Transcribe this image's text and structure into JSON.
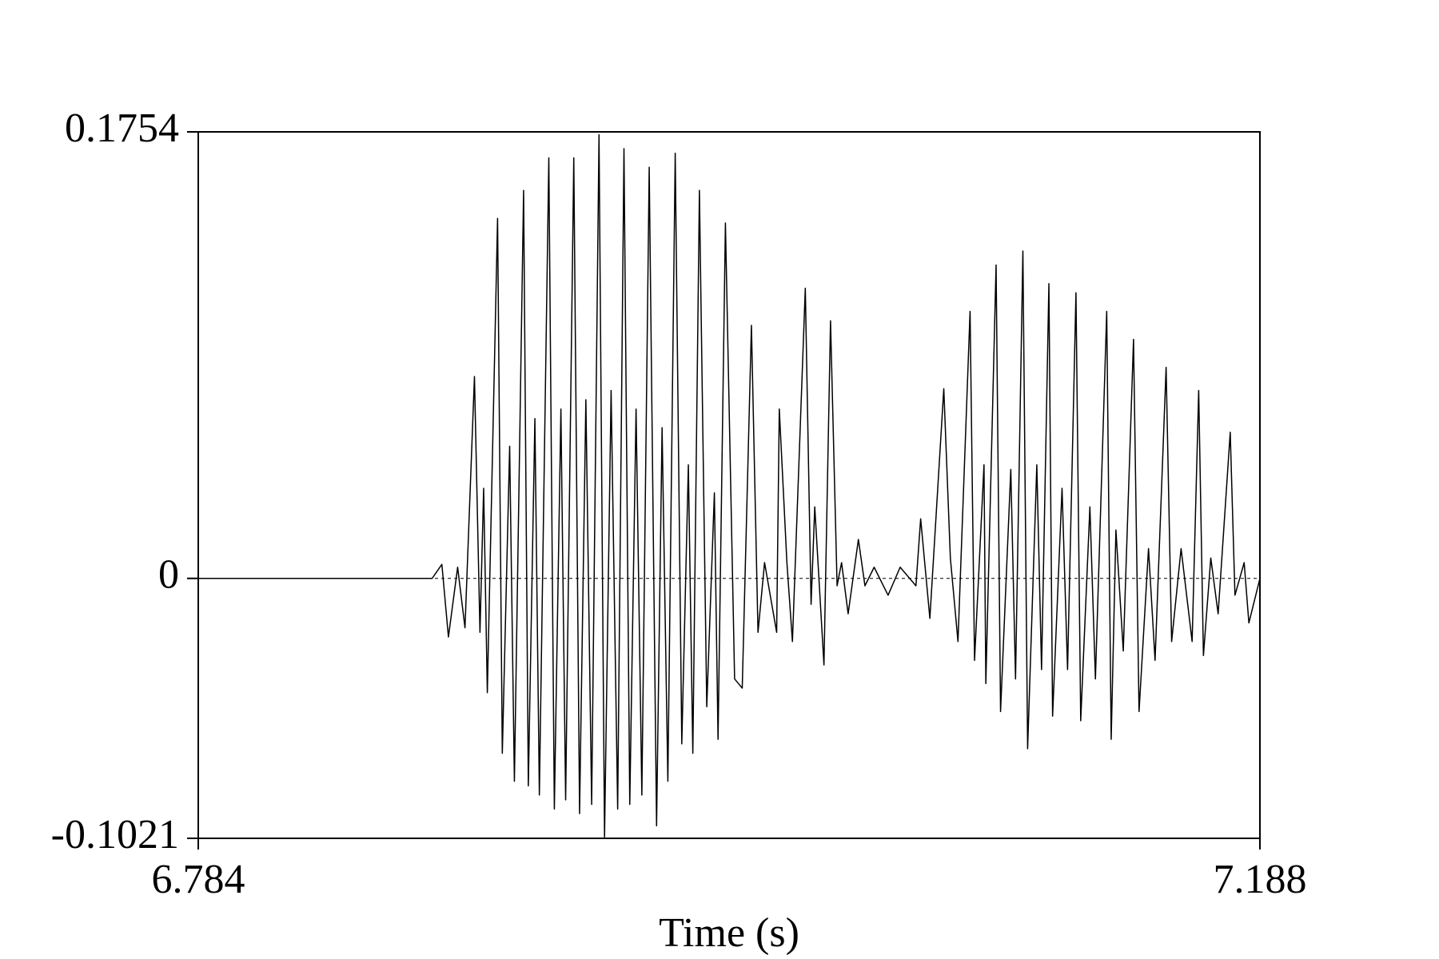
{
  "chart_data": {
    "type": "line",
    "x_label": "Time (s)",
    "color": "#000000",
    "zero_line": true,
    "xlim": [
      6.784,
      7.188
    ],
    "xticks": [
      6.784,
      7.188
    ],
    "ylim": [
      -0.1021,
      0.1754
    ],
    "yticks": [
      -0.1021,
      0,
      0.1754
    ],
    "x": [
      6.784,
      6.873,
      6.8767,
      6.8792,
      6.8827,
      6.8855,
      6.8891,
      6.8912,
      6.8926,
      6.894,
      6.8979,
      6.8997,
      6.9025,
      6.9043,
      6.9078,
      6.9096,
      6.9121,
      6.9138,
      6.9174,
      6.9195,
      6.922,
      6.9238,
      6.9269,
      6.9291,
      6.9315,
      6.9337,
      6.9365,
      6.9386,
      6.9411,
      6.9436,
      6.946,
      6.9482,
      6.9506,
      6.9528,
      6.9556,
      6.9584,
      6.9605,
      6.9627,
      6.9655,
      6.968,
      6.9705,
      6.9722,
      6.9747,
      6.9775,
      6.9804,
      6.9818,
      6.9846,
      6.9881,
      6.991,
      6.9945,
      6.997,
      6.9995,
      7.0041,
      7.0051,
      7.008,
      7.0101,
      7.015,
      7.0172,
      7.0186,
      7.0221,
      7.0246,
      7.0271,
      7.0288,
      7.0313,
      7.0352,
      7.0377,
      7.0412,
      7.0465,
      7.0511,
      7.0571,
      7.0589,
      7.0624,
      7.0677,
      7.0702,
      7.0731,
      7.0777,
      7.0794,
      7.083,
      7.0837,
      7.0876,
      7.0893,
      7.0932,
      7.095,
      7.0978,
      7.0996,
      7.1031,
      7.1049,
      7.1077,
      7.1091,
      7.1127,
      7.1148,
      7.118,
      7.1198,
      7.1233,
      7.1254,
      7.1297,
      7.1314,
      7.1332,
      7.136,
      7.1399,
      7.142,
      7.1456,
      7.1481,
      7.1523,
      7.1544,
      7.158,
      7.1622,
      7.1647,
      7.1665,
      7.1693,
      7.1721,
      7.1767,
      7.1785,
      7.182,
      7.1838,
      7.188
    ],
    "values": [
      0,
      0,
      0.0055,
      -0.023,
      0.0044,
      -0.0194,
      0.0793,
      -0.0212,
      0.0354,
      -0.0449,
      0.1414,
      -0.0687,
      0.0519,
      -0.0797,
      0.1524,
      -0.0815,
      0.0628,
      -0.0851,
      0.1652,
      -0.0906,
      0.0665,
      -0.087,
      0.1652,
      -0.0924,
      0.0702,
      -0.0888,
      0.1743,
      -0.1016,
      0.0738,
      -0.0906,
      0.1688,
      -0.0888,
      0.0665,
      -0.0851,
      0.1615,
      -0.0972,
      0.0592,
      -0.0797,
      0.167,
      -0.065,
      0.0446,
      -0.0687,
      0.1524,
      -0.0504,
      0.0336,
      -0.0632,
      0.1396,
      -0.0395,
      -0.0431,
      0.0994,
      -0.0212,
      0.0062,
      -0.0212,
      0.0665,
      0.0062,
      -0.0248,
      0.114,
      -0.0102,
      0.0281,
      -0.034,
      0.1012,
      -0.0029,
      0.0062,
      -0.0139,
      0.0153,
      -0.0029,
      0.0044,
      -0.0066,
      0.0044,
      -0.0029,
      0.0234,
      -0.0157,
      0.0745,
      0.008,
      -0.0248,
      0.1049,
      -0.0322,
      0.0446,
      -0.0413,
      0.1231,
      -0.0523,
      0.0428,
      -0.0395,
      0.1286,
      -0.0669,
      0.0446,
      -0.0358,
      0.1158,
      -0.0541,
      0.0354,
      -0.0358,
      0.1122,
      -0.0559,
      0.0281,
      -0.0395,
      0.1049,
      -0.0632,
      0.019,
      -0.0285,
      0.0939,
      -0.0523,
      0.0117,
      -0.0322,
      0.0829,
      -0.0248,
      0.0117,
      -0.0248,
      0.0738,
      -0.0303,
      0.008,
      -0.0139,
      0.0574,
      -0.0066,
      0.0062,
      -0.0175,
      0
    ]
  }
}
